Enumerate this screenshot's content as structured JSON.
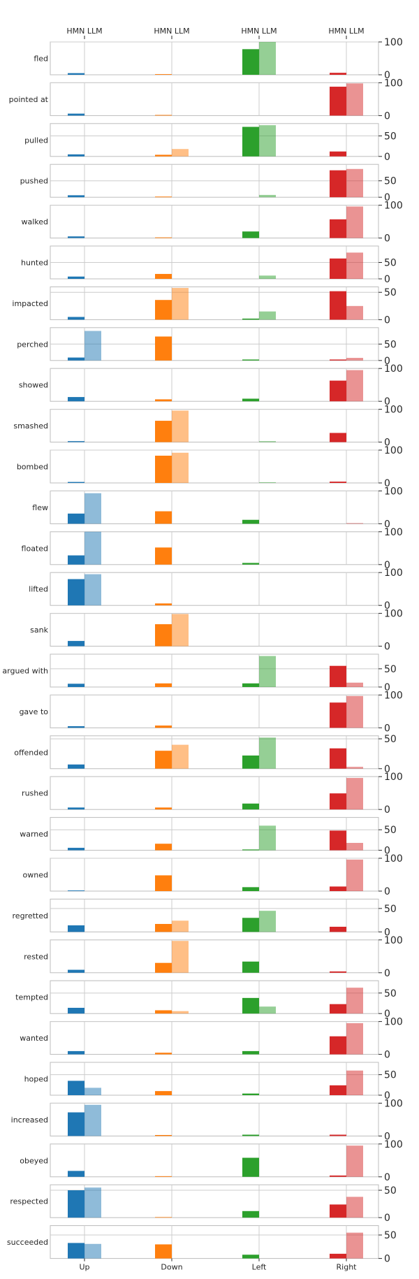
{
  "chart_data": {
    "type": "bar",
    "header_labels": [
      "HMN LLM",
      "HMN LLM",
      "HMN LLM",
      "HMN LLM"
    ],
    "categories": [
      "Up",
      "Down",
      "Left",
      "Right"
    ],
    "series": [
      {
        "name": "HMN",
        "opacity": 1.0
      },
      {
        "name": "LLM",
        "opacity": 0.5
      }
    ],
    "colors": [
      "#1f77b4",
      "#ff7f0e",
      "#2ca02c",
      "#d62728"
    ],
    "panels": [
      {
        "label": "fled",
        "ymax": 100,
        "ticks": [
          "0",
          "100"
        ],
        "hmn": [
          5,
          2,
          78,
          6
        ],
        "llm": [
          0,
          0,
          100,
          0
        ]
      },
      {
        "label": "pointed at",
        "ymax": 100,
        "ticks": [
          "0",
          "100"
        ],
        "hmn": [
          6,
          2,
          0,
          88
        ],
        "llm": [
          0,
          0,
          0,
          98
        ]
      },
      {
        "label": "pulled",
        "ymax": 80,
        "ticks": [
          "0",
          "50"
        ],
        "hmn": [
          5,
          4,
          72,
          12
        ],
        "llm": [
          0,
          18,
          76,
          0
        ]
      },
      {
        "label": "pushed",
        "ymax": 100,
        "ticks": [
          "0",
          "50"
        ],
        "hmn": [
          6,
          2,
          0,
          82
        ],
        "llm": [
          0,
          0,
          7,
          86
        ]
      },
      {
        "label": "walked",
        "ymax": 100,
        "ticks": [
          "0",
          "100"
        ],
        "hmn": [
          5,
          2,
          20,
          57
        ],
        "llm": [
          0,
          0,
          0,
          96
        ]
      },
      {
        "label": "hunted",
        "ymax": 100,
        "ticks": [
          "0",
          "50"
        ],
        "hmn": [
          7,
          15,
          0,
          62
        ],
        "llm": [
          0,
          0,
          10,
          80
        ]
      },
      {
        "label": "impacted",
        "ymax": 60,
        "ticks": [
          "0",
          "50"
        ],
        "hmn": [
          5,
          36,
          2,
          52
        ],
        "llm": [
          0,
          58,
          15,
          25
        ]
      },
      {
        "label": "perched",
        "ymax": 100,
        "ticks": [
          "0",
          "50"
        ],
        "hmn": [
          9,
          73,
          3,
          3
        ],
        "llm": [
          90,
          0,
          0,
          8
        ]
      },
      {
        "label": "showed",
        "ymax": 100,
        "ticks": [
          "0",
          "100"
        ],
        "hmn": [
          13,
          6,
          8,
          63
        ],
        "llm": [
          0,
          0,
          0,
          95
        ]
      },
      {
        "label": "smashed",
        "ymax": 100,
        "ticks": [
          "0",
          "100"
        ],
        "hmn": [
          3,
          65,
          0,
          28
        ],
        "llm": [
          0,
          96,
          3,
          0
        ]
      },
      {
        "label": "bombed",
        "ymax": 100,
        "ticks": [
          "0",
          "100"
        ],
        "hmn": [
          3,
          83,
          0,
          4
        ],
        "llm": [
          0,
          92,
          2,
          0
        ]
      },
      {
        "label": "flew",
        "ymax": 100,
        "ticks": [
          "0",
          "100"
        ],
        "hmn": [
          31,
          38,
          12,
          0
        ],
        "llm": [
          93,
          0,
          0,
          2
        ]
      },
      {
        "label": "floated",
        "ymax": 100,
        "ticks": [
          "0",
          "100"
        ],
        "hmn": [
          28,
          52,
          5,
          0
        ],
        "llm": [
          100,
          0,
          0,
          0
        ]
      },
      {
        "label": "lifted",
        "ymax": 100,
        "ticks": [
          "0",
          "100"
        ],
        "hmn": [
          80,
          6,
          0,
          0
        ],
        "llm": [
          95,
          0,
          0,
          0
        ]
      },
      {
        "label": "sank",
        "ymax": 100,
        "ticks": [
          "0",
          "100"
        ],
        "hmn": [
          16,
          67,
          0,
          0
        ],
        "llm": [
          0,
          98,
          0,
          0
        ]
      },
      {
        "label": "argued with",
        "ymax": 90,
        "ticks": [
          "0",
          "50"
        ],
        "hmn": [
          9,
          10,
          10,
          58
        ],
        "llm": [
          0,
          0,
          85,
          12
        ]
      },
      {
        "label": "gave to",
        "ymax": 100,
        "ticks": [
          "0",
          "100"
        ],
        "hmn": [
          5,
          7,
          0,
          77
        ],
        "llm": [
          0,
          0,
          0,
          97
        ]
      },
      {
        "label": "offended",
        "ymax": 55,
        "ticks": [
          "0",
          "50"
        ],
        "hmn": [
          7,
          30,
          22,
          34
        ],
        "llm": [
          0,
          40,
          52,
          3
        ]
      },
      {
        "label": "rushed",
        "ymax": 100,
        "ticks": [
          "0",
          "100"
        ],
        "hmn": [
          6,
          6,
          18,
          49
        ],
        "llm": [
          0,
          0,
          0,
          96
        ]
      },
      {
        "label": "warned",
        "ymax": 80,
        "ticks": [
          "0",
          "50"
        ],
        "hmn": [
          6,
          16,
          2,
          48
        ],
        "llm": [
          0,
          0,
          60,
          18
        ]
      },
      {
        "label": "owned",
        "ymax": 100,
        "ticks": [
          "0",
          "100"
        ],
        "hmn": [
          2,
          48,
          12,
          14
        ],
        "llm": [
          0,
          0,
          0,
          96
        ]
      },
      {
        "label": "regretted",
        "ymax": 70,
        "ticks": [
          "0",
          "50"
        ],
        "hmn": [
          14,
          17,
          30,
          11
        ],
        "llm": [
          0,
          24,
          45,
          0
        ]
      },
      {
        "label": "rested",
        "ymax": 100,
        "ticks": [
          "0",
          "100"
        ],
        "hmn": [
          9,
          30,
          34,
          4
        ],
        "llm": [
          0,
          97,
          0,
          0
        ]
      },
      {
        "label": "tempted",
        "ymax": 80,
        "ticks": [
          "0",
          "50"
        ],
        "hmn": [
          14,
          8,
          38,
          23
        ],
        "llm": [
          0,
          6,
          17,
          63
        ]
      },
      {
        "label": "wanted",
        "ymax": 100,
        "ticks": [
          "0",
          "100"
        ],
        "hmn": [
          10,
          5,
          10,
          55
        ],
        "llm": [
          0,
          0,
          0,
          95
        ]
      },
      {
        "label": "hoped",
        "ymax": 80,
        "ticks": [
          "0",
          "50"
        ],
        "hmn": [
          35,
          10,
          4,
          24
        ],
        "llm": [
          18,
          0,
          0,
          60
        ]
      },
      {
        "label": "increased",
        "ymax": 100,
        "ticks": [
          "0",
          "100"
        ],
        "hmn": [
          72,
          3,
          4,
          4
        ],
        "llm": [
          95,
          0,
          0,
          0
        ]
      },
      {
        "label": "obeyed",
        "ymax": 100,
        "ticks": [
          "0",
          "100"
        ],
        "hmn": [
          18,
          2,
          58,
          4
        ],
        "llm": [
          0,
          0,
          0,
          95
        ]
      },
      {
        "label": "respected",
        "ymax": 60,
        "ticks": [
          "0",
          "50"
        ],
        "hmn": [
          50,
          1,
          12,
          24
        ],
        "llm": [
          55,
          0,
          0,
          38
        ]
      },
      {
        "label": "succeeded",
        "ymax": 70,
        "ticks": [
          "0",
          "50"
        ],
        "hmn": [
          33,
          30,
          8,
          10
        ],
        "llm": [
          31,
          0,
          0,
          55
        ]
      }
    ]
  }
}
